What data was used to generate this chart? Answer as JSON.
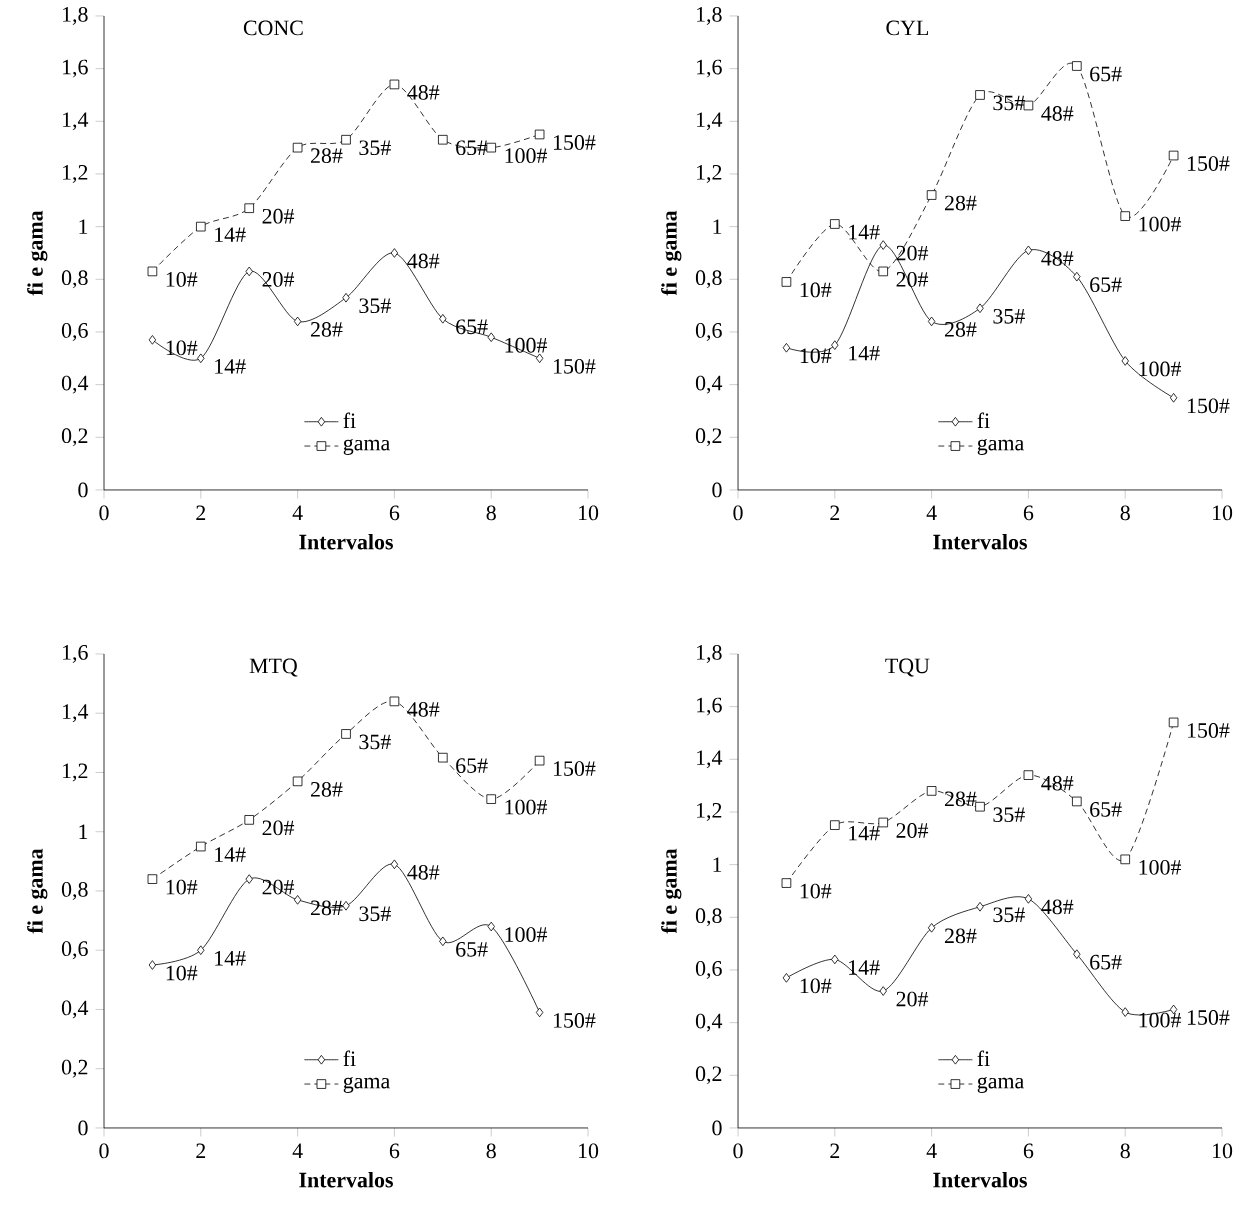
{
  "chart_data": [
    {
      "type": "line",
      "title": "CONC",
      "xlabel": "Intervalos",
      "ylabel": "fi e gama",
      "x": [
        1,
        2,
        3,
        4,
        5,
        6,
        7,
        8,
        9
      ],
      "xlim": [
        0,
        10
      ],
      "xticks": [
        0,
        2,
        4,
        6,
        8,
        10
      ],
      "ylim": [
        0,
        1.8
      ],
      "yticks": [
        0,
        {
          "value": 0.2,
          "label": "0,2"
        },
        {
          "value": 0.4,
          "label": "0,4"
        },
        {
          "value": 0.6,
          "label": "0,6"
        },
        {
          "value": 0.8,
          "label": "0,8"
        },
        1,
        {
          "value": 1.2,
          "label": "1,2"
        },
        {
          "value": 1.4,
          "label": "1,4"
        },
        {
          "value": 1.6,
          "label": "1,6"
        },
        {
          "value": 1.8,
          "label": "1,8"
        }
      ],
      "legend": "bottom",
      "series": [
        {
          "name": "fi",
          "color": "#000000",
          "marker": "diamond",
          "line_style": "solid",
          "values": [
            0.57,
            0.5,
            0.83,
            0.64,
            0.73,
            0.9,
            0.65,
            0.58,
            0.5
          ]
        },
        {
          "name": "gama",
          "color": "#000000",
          "marker": "square",
          "line_style": "dashed",
          "values": [
            0.83,
            1.0,
            1.07,
            1.3,
            1.33,
            1.54,
            1.33,
            1.3,
            1.35
          ]
        }
      ],
      "annotations": [
        {
          "text": "10#",
          "x": 1,
          "y": 0.57
        },
        {
          "text": "14#",
          "x": 2,
          "y": 0.5
        },
        {
          "text": "20#",
          "x": 3,
          "y": 0.83
        },
        {
          "text": "28#",
          "x": 4,
          "y": 0.64
        },
        {
          "text": "35#",
          "x": 5,
          "y": 0.73
        },
        {
          "text": "48#",
          "x": 6,
          "y": 0.9
        },
        {
          "text": "65#",
          "x": 7,
          "y": 0.65
        },
        {
          "text": "100#",
          "x": 8,
          "y": 0.58
        },
        {
          "text": "150#",
          "x": 9,
          "y": 0.5
        },
        {
          "text": "10#",
          "x": 1,
          "y": 0.83
        },
        {
          "text": "14#",
          "x": 2,
          "y": 1.0
        },
        {
          "text": "20#",
          "x": 3,
          "y": 1.07
        },
        {
          "text": "28#",
          "x": 4,
          "y": 1.3
        },
        {
          "text": "35#",
          "x": 5,
          "y": 1.33
        },
        {
          "text": "48#",
          "x": 6,
          "y": 1.54
        },
        {
          "text": "65#",
          "x": 7,
          "y": 1.33
        },
        {
          "text": "100#",
          "x": 8,
          "y": 1.3
        },
        {
          "text": "150#",
          "x": 9,
          "y": 1.35
        }
      ]
    },
    {
      "type": "line",
      "title": "CYL",
      "xlabel": "Intervalos",
      "ylabel": "fi e gama",
      "x": [
        1,
        2,
        3,
        4,
        5,
        6,
        7,
        8,
        9
      ],
      "xlim": [
        0,
        10
      ],
      "xticks": [
        0,
        2,
        4,
        6,
        8,
        10
      ],
      "ylim": [
        0,
        1.8
      ],
      "yticks": [
        0,
        {
          "value": 0.2,
          "label": "0,2"
        },
        {
          "value": 0.4,
          "label": "0,4"
        },
        {
          "value": 0.6,
          "label": "0,6"
        },
        {
          "value": 0.8,
          "label": "0,8"
        },
        1,
        {
          "value": 1.2,
          "label": "1,2"
        },
        {
          "value": 1.4,
          "label": "1,4"
        },
        {
          "value": 1.6,
          "label": "1,6"
        },
        {
          "value": 1.8,
          "label": "1,8"
        }
      ],
      "legend": "bottom",
      "series": [
        {
          "name": "fi",
          "color": "#000000",
          "marker": "diamond",
          "line_style": "solid",
          "values": [
            0.54,
            0.55,
            0.93,
            0.64,
            0.69,
            0.91,
            0.81,
            0.49,
            0.35
          ]
        },
        {
          "name": "gama",
          "color": "#000000",
          "marker": "square",
          "line_style": "dashed",
          "values": [
            0.79,
            1.01,
            0.83,
            1.12,
            1.5,
            1.46,
            1.61,
            1.04,
            1.27
          ]
        }
      ],
      "annotations": [
        {
          "text": "10#",
          "x": 1,
          "y": 0.54
        },
        {
          "text": "14#",
          "x": 2,
          "y": 0.55
        },
        {
          "text": "20#",
          "x": 3,
          "y": 0.93
        },
        {
          "text": "28#",
          "x": 4,
          "y": 0.64
        },
        {
          "text": "35#",
          "x": 5,
          "y": 0.69
        },
        {
          "text": "48#",
          "x": 6,
          "y": 0.91
        },
        {
          "text": "65#",
          "x": 7,
          "y": 0.81
        },
        {
          "text": "100#",
          "x": 8,
          "y": 0.49
        },
        {
          "text": "150#",
          "x": 9,
          "y": 0.35
        },
        {
          "text": "10#",
          "x": 1,
          "y": 0.79
        },
        {
          "text": "14#",
          "x": 2,
          "y": 1.01
        },
        {
          "text": "20#",
          "x": 3,
          "y": 0.83
        },
        {
          "text": "28#",
          "x": 4,
          "y": 1.12
        },
        {
          "text": "35#",
          "x": 5,
          "y": 1.5
        },
        {
          "text": "48#",
          "x": 6,
          "y": 1.46
        },
        {
          "text": "65#",
          "x": 7,
          "y": 1.61
        },
        {
          "text": "100#",
          "x": 8,
          "y": 1.04
        },
        {
          "text": "150#",
          "x": 9,
          "y": 1.27
        }
      ]
    },
    {
      "type": "line",
      "title": "MTQ",
      "xlabel": "Intervalos",
      "ylabel": "fi e gama",
      "x": [
        1,
        2,
        3,
        4,
        5,
        6,
        7,
        8,
        9
      ],
      "xlim": [
        0,
        10
      ],
      "xticks": [
        0,
        2,
        4,
        6,
        8,
        10
      ],
      "ylim": [
        0,
        1.6
      ],
      "yticks": [
        0,
        {
          "value": 0.2,
          "label": "0,2"
        },
        {
          "value": 0.4,
          "label": "0,4"
        },
        {
          "value": 0.6,
          "label": "0,6"
        },
        {
          "value": 0.8,
          "label": "0,8"
        },
        1,
        {
          "value": 1.2,
          "label": "1,2"
        },
        {
          "value": 1.4,
          "label": "1,4"
        },
        {
          "value": 1.6,
          "label": "1,6"
        }
      ],
      "legend": "bottom",
      "series": [
        {
          "name": "fi",
          "color": "#000000",
          "marker": "diamond",
          "line_style": "solid",
          "values": [
            0.55,
            0.6,
            0.84,
            0.77,
            0.75,
            0.89,
            0.63,
            0.68,
            0.39
          ]
        },
        {
          "name": "gama",
          "color": "#000000",
          "marker": "square",
          "line_style": "dashed",
          "values": [
            0.84,
            0.95,
            1.04,
            1.17,
            1.33,
            1.44,
            1.25,
            1.11,
            1.24
          ]
        }
      ],
      "annotations": [
        {
          "text": "10#",
          "x": 1,
          "y": 0.55
        },
        {
          "text": "14#",
          "x": 2,
          "y": 0.6
        },
        {
          "text": "20#",
          "x": 3,
          "y": 0.84
        },
        {
          "text": "28#",
          "x": 4,
          "y": 0.77
        },
        {
          "text": "35#",
          "x": 5,
          "y": 0.75
        },
        {
          "text": "48#",
          "x": 6,
          "y": 0.89
        },
        {
          "text": "65#",
          "x": 7,
          "y": 0.63
        },
        {
          "text": "100#",
          "x": 8,
          "y": 0.68
        },
        {
          "text": "150#",
          "x": 9,
          "y": 0.39
        },
        {
          "text": "10#",
          "x": 1,
          "y": 0.84
        },
        {
          "text": "14#",
          "x": 2,
          "y": 0.95
        },
        {
          "text": "20#",
          "x": 3,
          "y": 1.04
        },
        {
          "text": "28#",
          "x": 4,
          "y": 1.17
        },
        {
          "text": "35#",
          "x": 5,
          "y": 1.33
        },
        {
          "text": "48#",
          "x": 6,
          "y": 1.44
        },
        {
          "text": "65#",
          "x": 7,
          "y": 1.25
        },
        {
          "text": "100#",
          "x": 8,
          "y": 1.11
        },
        {
          "text": "150#",
          "x": 9,
          "y": 1.24
        }
      ]
    },
    {
      "type": "line",
      "title": "TQU",
      "xlabel": "Intervalos",
      "ylabel": "fi e gama",
      "x": [
        1,
        2,
        3,
        4,
        5,
        6,
        7,
        8,
        9
      ],
      "xlim": [
        0,
        10
      ],
      "xticks": [
        0,
        2,
        4,
        6,
        8,
        10
      ],
      "ylim": [
        0,
        1.8
      ],
      "yticks": [
        0,
        {
          "value": 0.2,
          "label": "0,2"
        },
        {
          "value": 0.4,
          "label": "0,4"
        },
        {
          "value": 0.6,
          "label": "0,6"
        },
        {
          "value": 0.8,
          "label": "0,8"
        },
        1,
        {
          "value": 1.2,
          "label": "1,2"
        },
        {
          "value": 1.4,
          "label": "1,4"
        },
        {
          "value": 1.6,
          "label": "1,6"
        },
        {
          "value": 1.8,
          "label": "1,8"
        }
      ],
      "legend": "bottom",
      "series": [
        {
          "name": "fi",
          "color": "#000000",
          "marker": "diamond",
          "line_style": "solid",
          "values": [
            0.57,
            0.64,
            0.52,
            0.76,
            0.84,
            0.87,
            0.66,
            0.44,
            0.45
          ]
        },
        {
          "name": "gama",
          "color": "#000000",
          "marker": "square",
          "line_style": "dashed",
          "values": [
            0.93,
            1.15,
            1.16,
            1.28,
            1.22,
            1.34,
            1.24,
            1.02,
            1.54
          ]
        }
      ],
      "annotations": [
        {
          "text": "10#",
          "x": 1,
          "y": 0.57
        },
        {
          "text": "14#",
          "x": 2,
          "y": 0.64
        },
        {
          "text": "20#",
          "x": 3,
          "y": 0.52
        },
        {
          "text": "28#",
          "x": 4,
          "y": 0.76
        },
        {
          "text": "35#",
          "x": 5,
          "y": 0.84
        },
        {
          "text": "48#",
          "x": 6,
          "y": 0.87
        },
        {
          "text": "65#",
          "x": 7,
          "y": 0.66
        },
        {
          "text": "100#",
          "x": 8,
          "y": 0.44
        },
        {
          "text": "150#",
          "x": 9,
          "y": 0.45
        },
        {
          "text": "10#",
          "x": 1,
          "y": 0.93
        },
        {
          "text": "14#",
          "x": 2,
          "y": 1.15
        },
        {
          "text": "20#",
          "x": 3,
          "y": 1.16
        },
        {
          "text": "28#",
          "x": 4,
          "y": 1.28
        },
        {
          "text": "35#",
          "x": 5,
          "y": 1.22
        },
        {
          "text": "48#",
          "x": 6,
          "y": 1.34
        },
        {
          "text": "65#",
          "x": 7,
          "y": 1.24
        },
        {
          "text": "100#",
          "x": 8,
          "y": 1.02
        },
        {
          "text": "150#",
          "x": 9,
          "y": 1.54
        }
      ]
    }
  ]
}
